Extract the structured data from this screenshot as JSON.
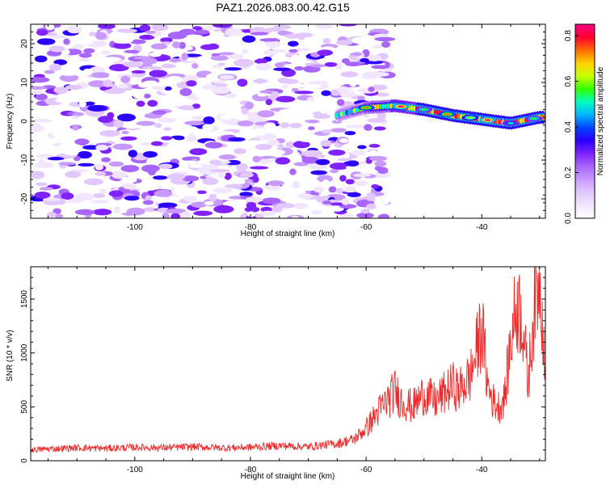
{
  "title": "PAZ1.2026.083.00.42.G15",
  "colors": {
    "snr_line": "#f02a2a",
    "axis": "#000000",
    "colormap": [
      "#ffffff",
      "#f2e6ff",
      "#e2c8ff",
      "#c89aff",
      "#a866ff",
      "#7f22ff",
      "#2a00ff",
      "#0044ff",
      "#00b4ff",
      "#00ffc0",
      "#33ff00",
      "#c8ff00",
      "#ffd000",
      "#ff6a00",
      "#ff0030",
      "#ff0088"
    ]
  },
  "chart_data": [
    {
      "type": "heatmap",
      "xlabel": "Height of straight line (km)",
      "ylabel": "Frequency (Hz)",
      "xlim": [
        -118,
        -29
      ],
      "ylim": [
        -25,
        25
      ],
      "xticks": [
        -100,
        -80,
        -60,
        -40
      ],
      "yticks": [
        -20,
        -10,
        0,
        10,
        20
      ],
      "colorbar": {
        "label": "Normalized spectral amplitude",
        "range": [
          0,
          0.85
        ],
        "ticks": [
          0,
          0.2,
          0.4,
          0.6,
          0.8
        ],
        "ticklabels": [
          "0.0",
          "0.2",
          "0.4",
          "0.6",
          "0.8"
        ]
      },
      "signal_trace": {
        "x": [
          -65,
          -60,
          -55,
          -50,
          -45,
          -40,
          -35,
          -30
        ],
        "y": [
          1.5,
          3.5,
          4,
          3,
          1.5,
          0.5,
          -0.5,
          1
        ],
        "peak_amplitude": 0.85
      },
      "noise_region": {
        "x_range": [
          -117,
          -56
        ],
        "y_range": [
          -25,
          25
        ],
        "amplitude_range": [
          0.02,
          0.35
        ]
      }
    },
    {
      "type": "line",
      "xlabel": "Height of straight line (km)",
      "ylabel": "SNR (10 * v/v)",
      "xlim": [
        -118,
        -29
      ],
      "ylim": [
        0,
        1800
      ],
      "xticks": [
        -100,
        -80,
        -60,
        -40
      ],
      "yticks": [
        0,
        500,
        1000,
        1500
      ],
      "series": [
        {
          "x": [
            -118,
            -115,
            -110,
            -105,
            -100,
            -95,
            -90,
            -85,
            -80,
            -75,
            -70,
            -65,
            -62,
            -60,
            -58,
            -56,
            -55,
            -54,
            -52,
            -50,
            -48,
            -46,
            -45,
            -44,
            -42,
            -41,
            -40,
            -39,
            -38,
            -37,
            -36,
            -35,
            -34,
            -33,
            -32,
            -31,
            -30,
            -29
          ],
          "y": [
            100,
            110,
            120,
            115,
            125,
            120,
            130,
            120,
            125,
            140,
            130,
            160,
            200,
            300,
            450,
            580,
            650,
            560,
            500,
            620,
            550,
            650,
            700,
            650,
            780,
            1000,
            1250,
            700,
            550,
            500,
            600,
            1100,
            1450,
            1350,
            700,
            1400,
            1780,
            900
          ]
        }
      ]
    }
  ]
}
